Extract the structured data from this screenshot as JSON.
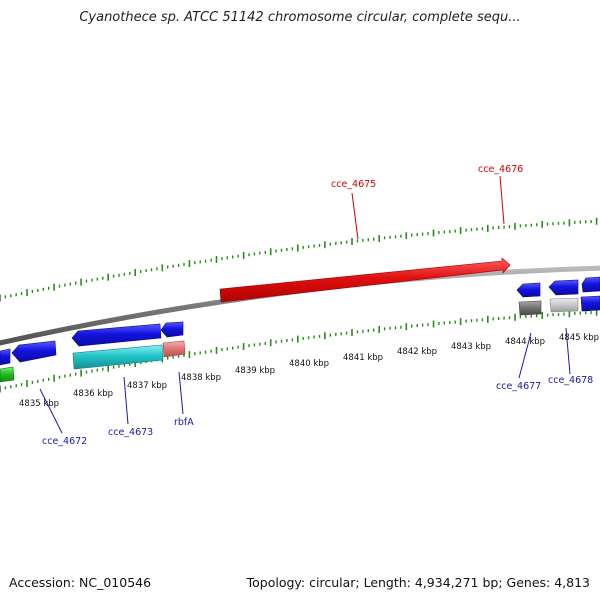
{
  "title": "Cyanothece sp. ATCC 51142 chromosome circular, complete sequ...",
  "footer": {
    "accession": "Accession: NC_010546",
    "summary": "Topology: circular; Length: 4,934,271 bp; Genes: 4,813"
  },
  "kbp_ticks": [
    "4835 kbp",
    "4836 kbp",
    "4837 kbp",
    "4838 kbp",
    "4839 kbp",
    "4840 kbp",
    "4841 kbp",
    "4842 kbp",
    "4843 kbp",
    "4844 kbp",
    "4845 kbp"
  ],
  "gene_labels": [
    {
      "text": "cce_4675",
      "color": "#d40000"
    },
    {
      "text": "cce_4676",
      "color": "#d40000"
    },
    {
      "text": "cce_4672",
      "color": "#1a1aa8"
    },
    {
      "text": "cce_4673",
      "color": "#1a1aa8"
    },
    {
      "text": "rbfA",
      "color": "#1a1aa8"
    },
    {
      "text": "cce_4677",
      "color": "#1a1aa8"
    },
    {
      "text": "cce_4678",
      "color": "#1a1aa8"
    }
  ],
  "colors": {
    "backbone": "#8a8a8a",
    "ruler": "#2a8a1e",
    "forward_gene": "#e01010",
    "reverse_gene": "#1414e0",
    "cyan_gene": "#22c4c8",
    "pink_gene": "#e07878",
    "green_gene": "#22c022",
    "gray_gene": "#808080",
    "lightgray_gene": "#c8c8c8"
  }
}
